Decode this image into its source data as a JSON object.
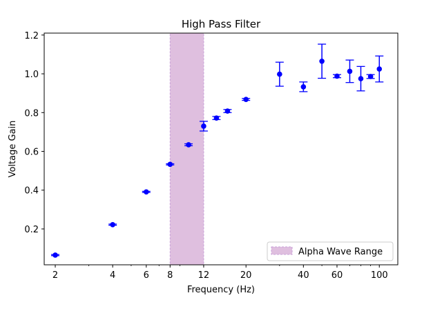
{
  "chart_data": {
    "type": "scatter",
    "title": "High Pass Filter",
    "xlabel": "Frequency (Hz)",
    "ylabel": "Voltage Gain",
    "xscale": "log",
    "xlim": [
      1.75,
      125
    ],
    "ylim": [
      0.015,
      1.21
    ],
    "xticks": [
      2,
      4,
      6,
      8,
      12,
      20,
      40,
      60,
      100
    ],
    "xtick_labels": [
      "2",
      "4",
      "6",
      "8",
      "12",
      "20",
      "40",
      "60",
      "100"
    ],
    "yticks": [
      0.2,
      0.4,
      0.6,
      0.8,
      1.0,
      1.2
    ],
    "ytick_labels": [
      "0.2",
      "0.4",
      "0.6",
      "0.8",
      "1.0",
      "1.2"
    ],
    "grid": false,
    "legend_placement": "lower-right",
    "series": [
      {
        "marker_color": "#0000ff",
        "points": [
          {
            "x": 2,
            "y": 0.065,
            "yerr": 0.003
          },
          {
            "x": 4,
            "y": 0.222,
            "yerr": 0.003
          },
          {
            "x": 6,
            "y": 0.391,
            "yerr": 0.003
          },
          {
            "x": 8,
            "y": 0.533,
            "yerr": 0.003
          },
          {
            "x": 10,
            "y": 0.634,
            "yerr": 0.005
          },
          {
            "x": 12,
            "y": 0.73,
            "yerr": 0.025
          },
          {
            "x": 14,
            "y": 0.772,
            "yerr": 0.008
          },
          {
            "x": 16,
            "y": 0.808,
            "yerr": 0.008
          },
          {
            "x": 20,
            "y": 0.868,
            "yerr": 0.005
          },
          {
            "x": 30,
            "y": 0.998,
            "yerr": 0.062
          },
          {
            "x": 40,
            "y": 0.933,
            "yerr": 0.025
          },
          {
            "x": 50,
            "y": 1.065,
            "yerr": 0.088
          },
          {
            "x": 60,
            "y": 0.988,
            "yerr": 0.008
          },
          {
            "x": 70,
            "y": 1.013,
            "yerr": 0.058
          },
          {
            "x": 80,
            "y": 0.975,
            "yerr": 0.063
          },
          {
            "x": 90,
            "y": 0.986,
            "yerr": 0.01
          },
          {
            "x": 100,
            "y": 1.025,
            "yerr": 0.067
          }
        ]
      }
    ],
    "shaded_region": {
      "x_start": 8,
      "x_end": 12,
      "fill": "#dfbfdf",
      "edge": "#c8a0d8",
      "label": "Alpha Wave Range"
    }
  }
}
